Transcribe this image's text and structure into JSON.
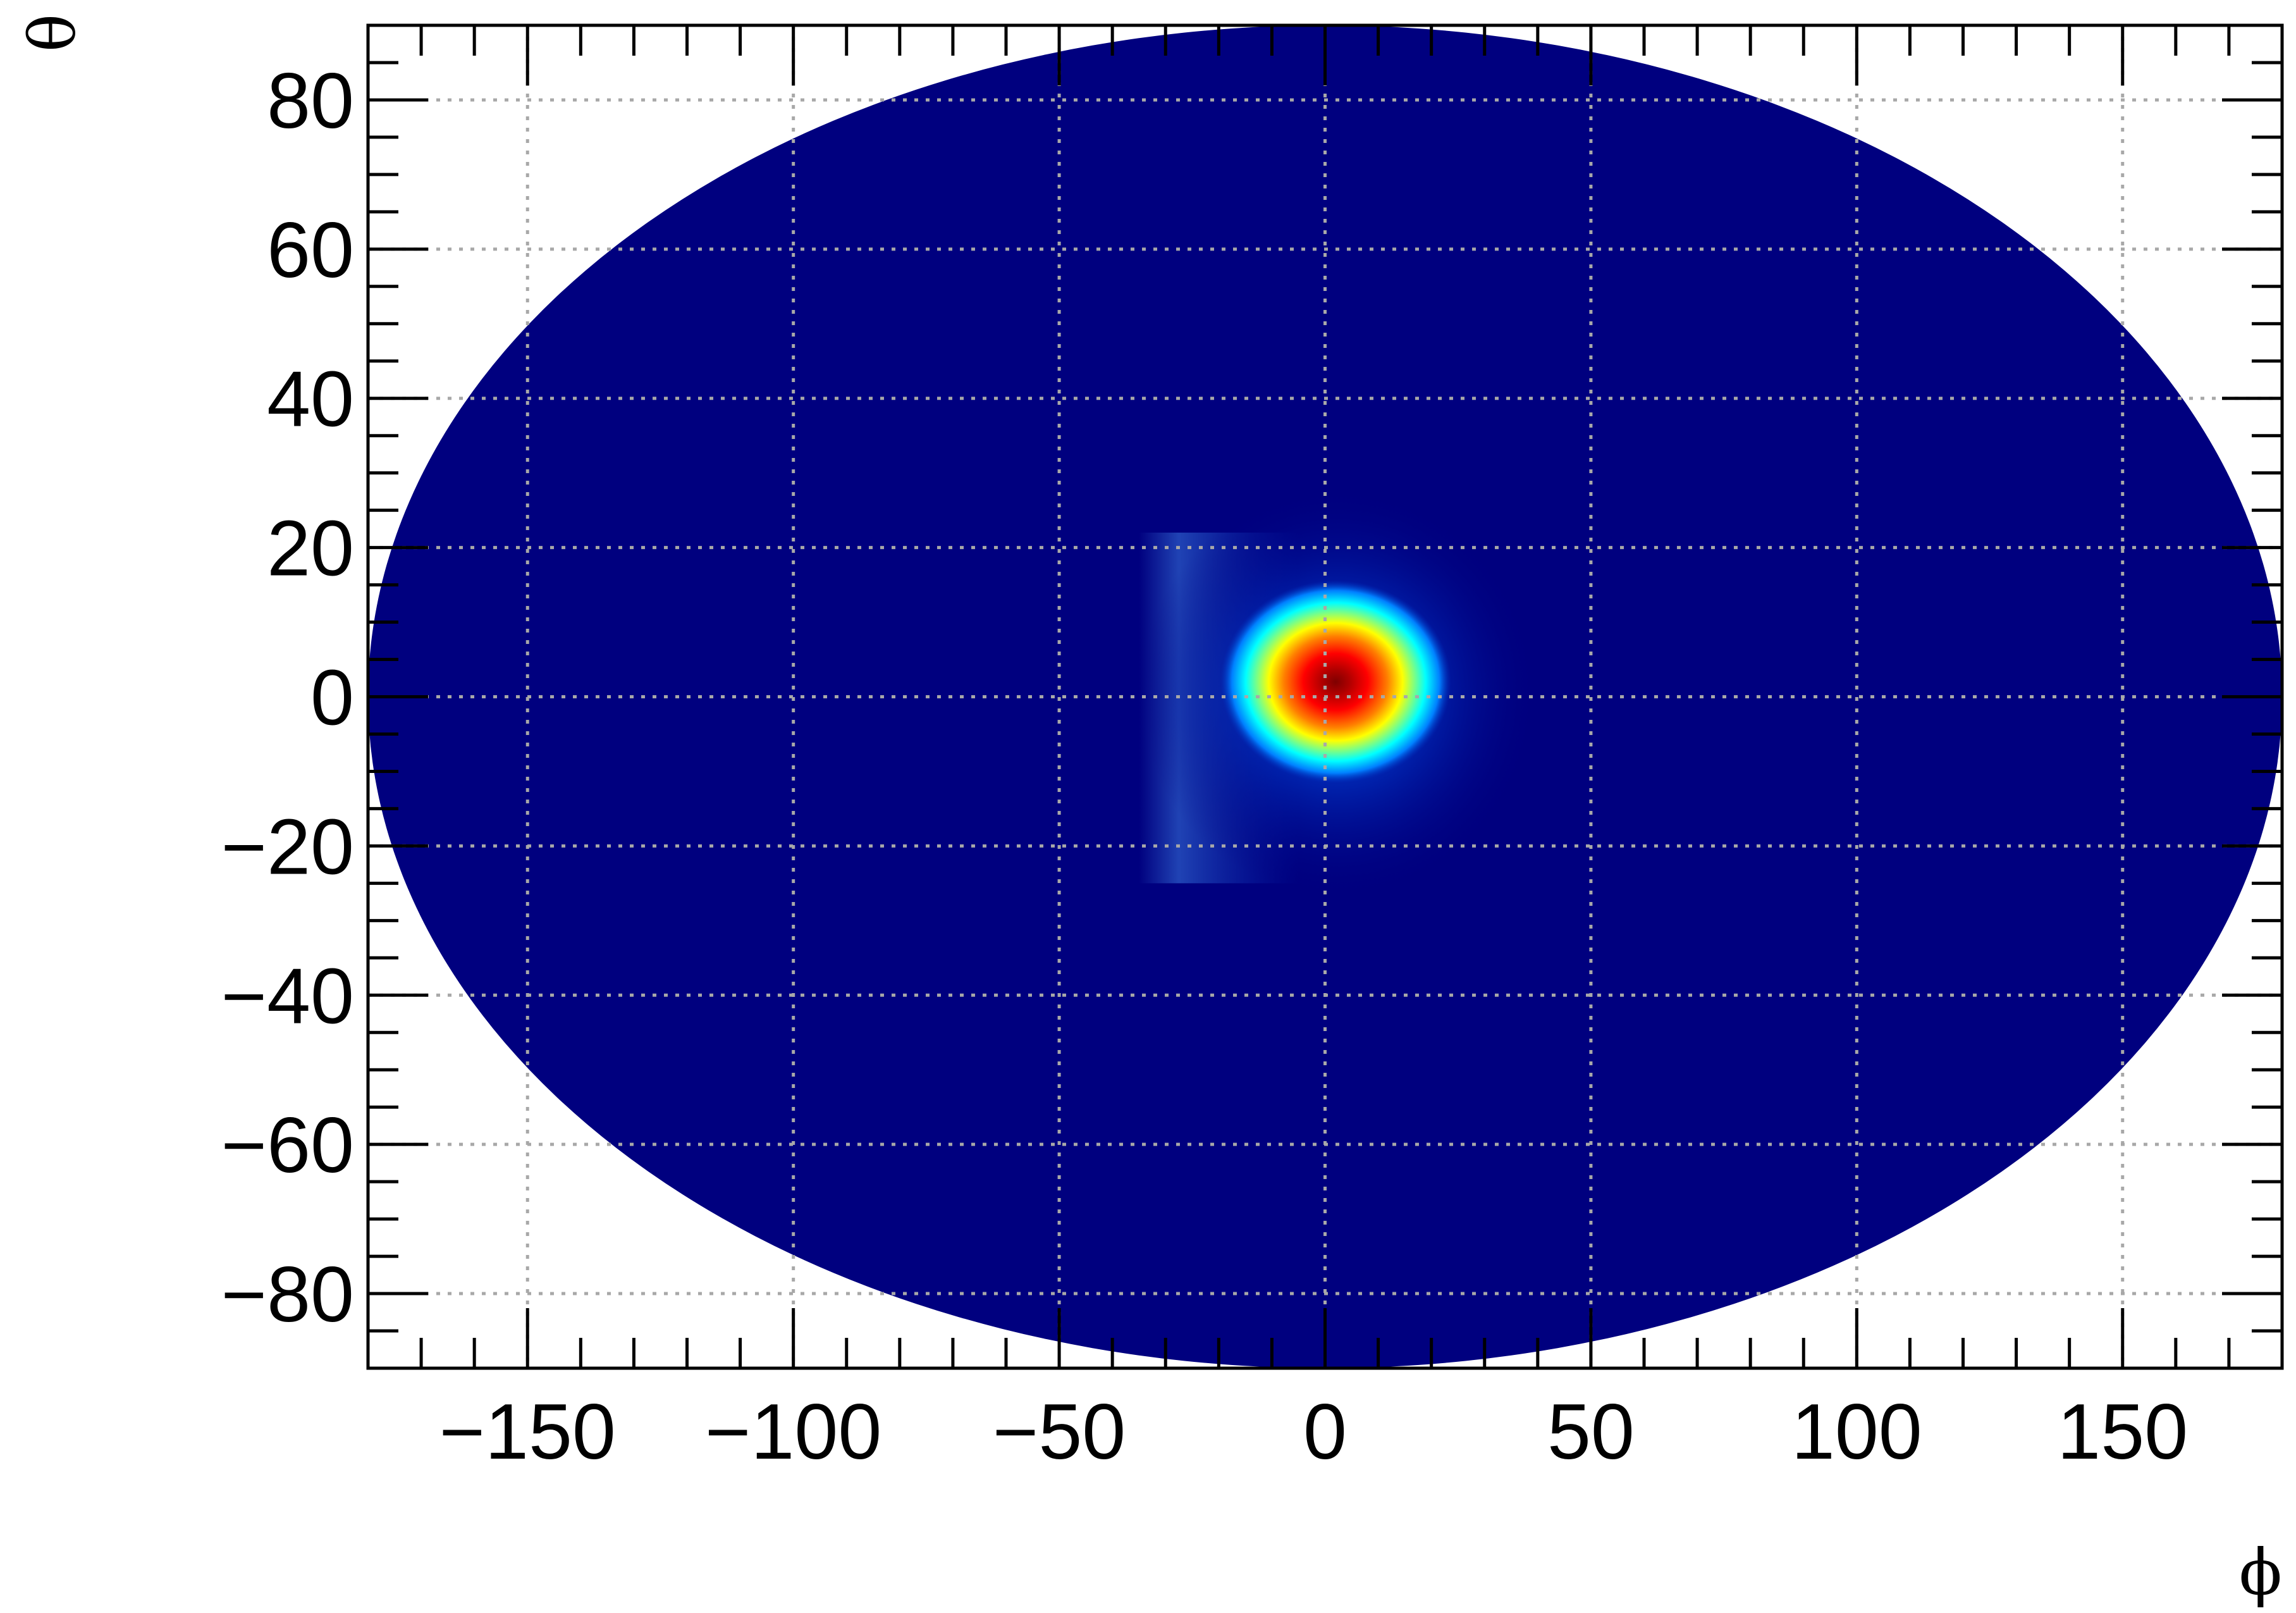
{
  "chart_data": {
    "type": "heatmap",
    "projection": "hammer-aitoff (elliptical)",
    "title": "",
    "xlabel": "ϕ",
    "ylabel": "θ",
    "xlim": [
      -180,
      180
    ],
    "ylim": [
      -90,
      90
    ],
    "x_ticks": [
      -150,
      -100,
      -50,
      0,
      50,
      100,
      150
    ],
    "x_tick_labels": [
      "−150",
      "−100",
      "−50",
      "0",
      "50",
      "100",
      "150"
    ],
    "y_ticks": [
      -80,
      -60,
      -40,
      -20,
      0,
      20,
      40,
      60,
      80
    ],
    "y_tick_labels": [
      "−80",
      "−60",
      "−40",
      "−20",
      "0",
      "20",
      "40",
      "60",
      "80"
    ],
    "grid": true,
    "legend": "none",
    "background_value_color": "#00007f",
    "hotspot": {
      "center_phi": 2,
      "center_theta": 2,
      "core_halfwidth_phi": 14,
      "core_halfwidth_theta": 8,
      "halo_extent_phi": [
        -35,
        40
      ],
      "halo_extent_theta": [
        -27,
        28
      ]
    },
    "colormap": [
      "#00007f",
      "#0000ff",
      "#0080ff",
      "#00ffff",
      "#80ff80",
      "#ffff00",
      "#ff8000",
      "#ff0000",
      "#7f0000"
    ]
  }
}
